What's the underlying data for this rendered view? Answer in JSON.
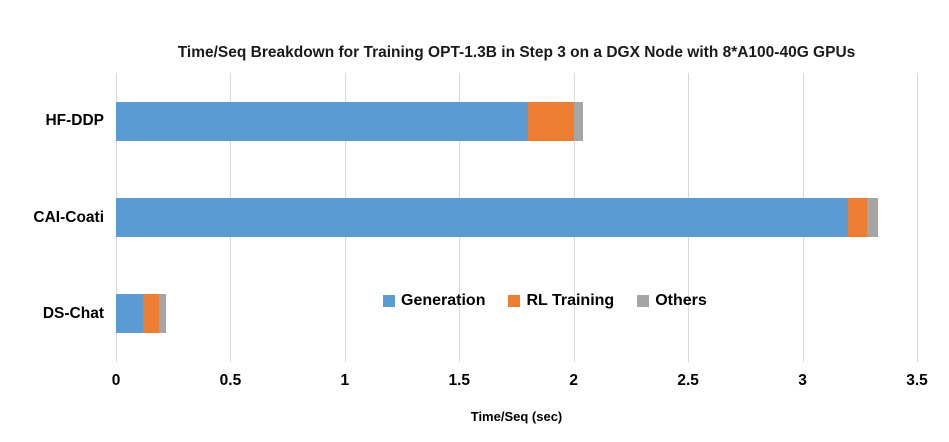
{
  "chart_data": {
    "type": "bar",
    "orientation": "horizontal-stacked",
    "title": "Time/Seq Breakdown for Training OPT-1.3B in Step 3 on a DGX Node with 8*A100-40G GPUs",
    "xlabel": "Time/Seq (sec)",
    "ylabel": "",
    "categories": [
      "HF-DDP",
      "CAI-Coati",
      "DS-Chat"
    ],
    "series": [
      {
        "name": "Generation",
        "color": "#5B9BD5",
        "values": [
          1.8,
          3.2,
          0.12
        ]
      },
      {
        "name": "RL Training",
        "color": "#ED7D31",
        "values": [
          0.2,
          0.08,
          0.07
        ]
      },
      {
        "name": "Others",
        "color": "#A5A5A5",
        "values": [
          0.04,
          0.05,
          0.03
        ]
      }
    ],
    "totals": [
      2.04,
      3.33,
      0.22
    ],
    "xlim": [
      0,
      3.5
    ],
    "xticks": [
      0,
      0.5,
      1,
      1.5,
      2,
      2.5,
      3,
      3.5
    ],
    "xtick_labels": [
      "0",
      "0.5",
      "1",
      "1.5",
      "2",
      "2.5",
      "3",
      "3.5"
    ],
    "grid": "vertical",
    "gridline_color": "#D9D9D9",
    "legend_position": "inside-bottom-center"
  }
}
